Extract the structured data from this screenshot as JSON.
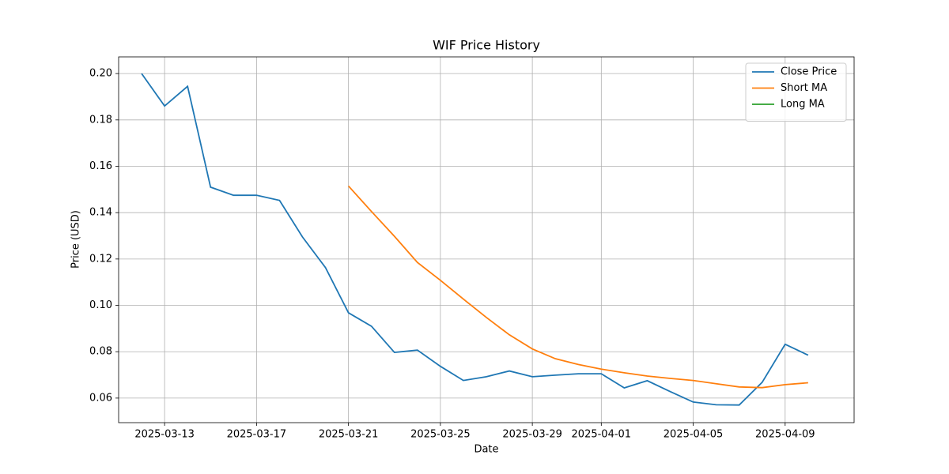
{
  "chart_data": {
    "type": "line",
    "title": "WIF Price History",
    "xlabel": "Date",
    "ylabel": "Price (USD)",
    "x": [
      "2025-03-12",
      "2025-03-13",
      "2025-03-14",
      "2025-03-15",
      "2025-03-16",
      "2025-03-17",
      "2025-03-18",
      "2025-03-19",
      "2025-03-20",
      "2025-03-21",
      "2025-03-22",
      "2025-03-23",
      "2025-03-24",
      "2025-03-25",
      "2025-03-26",
      "2025-03-27",
      "2025-03-28",
      "2025-03-29",
      "2025-03-30",
      "2025-03-31",
      "2025-04-01",
      "2025-04-02",
      "2025-04-03",
      "2025-04-04",
      "2025-04-05",
      "2025-04-06",
      "2025-04-07",
      "2025-04-08",
      "2025-04-09",
      "2025-04-10"
    ],
    "series": [
      {
        "name": "Close Price",
        "color": "#1f77b4",
        "values": [
          0.2,
          0.186,
          0.1945,
          0.151,
          0.1475,
          0.1475,
          0.1453,
          0.1295,
          0.1163,
          0.0968,
          0.091,
          0.0797,
          0.0807,
          0.0737,
          0.0676,
          0.0692,
          0.0717,
          0.0692,
          0.0699,
          0.0705,
          0.0705,
          0.0644,
          0.0675,
          0.0628,
          0.0583,
          0.0571,
          0.057,
          0.0668,
          0.0832,
          0.0785
        ]
      },
      {
        "name": "Short MA",
        "color": "#ff7f0e",
        "values": [
          null,
          null,
          null,
          null,
          null,
          null,
          null,
          null,
          null,
          0.1515,
          0.1405,
          0.1298,
          0.1185,
          0.1108,
          0.1027,
          0.0948,
          0.0873,
          0.0812,
          0.077,
          0.0745,
          0.0725,
          0.0709,
          0.0695,
          0.0685,
          0.0676,
          0.0662,
          0.0648,
          0.0645,
          0.0658,
          0.0666
        ]
      },
      {
        "name": "Long MA",
        "color": "#2ca02c",
        "values": [
          null,
          null,
          null,
          null,
          null,
          null,
          null,
          null,
          null,
          null,
          null,
          null,
          null,
          null,
          null,
          null,
          null,
          null,
          null,
          null,
          null,
          null,
          null,
          null,
          null,
          null,
          null,
          null,
          null,
          null
        ]
      }
    ],
    "xlim": [
      "2025-03-11",
      "2025-04-12"
    ],
    "xticks": [
      "2025-03-13",
      "2025-03-17",
      "2025-03-21",
      "2025-03-25",
      "2025-03-29",
      "2025-04-01",
      "2025-04-05",
      "2025-04-09"
    ],
    "ylim": [
      0.0494,
      0.2072
    ],
    "yticks": [
      {
        "value": 0.06,
        "label": "0.06"
      },
      {
        "value": 0.08,
        "label": "0.08"
      },
      {
        "value": 0.1,
        "label": "0.10"
      },
      {
        "value": 0.12,
        "label": "0.12"
      },
      {
        "value": 0.14,
        "label": "0.14"
      },
      {
        "value": 0.16,
        "label": "0.16"
      },
      {
        "value": 0.18,
        "label": "0.18"
      },
      {
        "value": 0.2,
        "label": "0.20"
      }
    ],
    "grid": true,
    "legend": "upper right"
  }
}
